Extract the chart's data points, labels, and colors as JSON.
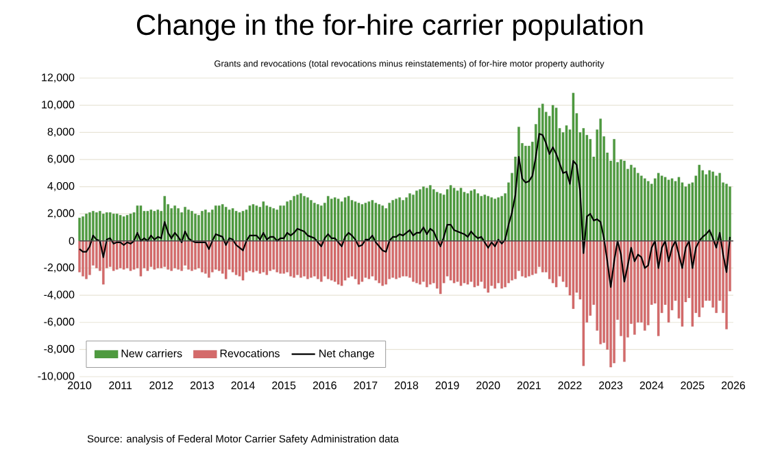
{
  "chart_data": {
    "type": "bar",
    "title": "Change in the for-hire carrier population",
    "subtitle": "Grants and revocations (total revocations minus reinstatements) of for-hire motor property authority",
    "annotations": [
      "Source: analysis of Federal Motor Carrier Safety Administration data"
    ],
    "x": [
      "2010-01",
      "2010-02",
      "2010-03",
      "2010-04",
      "2010-05",
      "2010-06",
      "2010-07",
      "2010-08",
      "2010-09",
      "2010-10",
      "2010-11",
      "2010-12",
      "2011-01",
      "2011-02",
      "2011-03",
      "2011-04",
      "2011-05",
      "2011-06",
      "2011-07",
      "2011-08",
      "2011-09",
      "2011-10",
      "2011-11",
      "2011-12",
      "2012-01",
      "2012-02",
      "2012-03",
      "2012-04",
      "2012-05",
      "2012-06",
      "2012-07",
      "2012-08",
      "2012-09",
      "2012-10",
      "2012-11",
      "2012-12",
      "2013-01",
      "2013-02",
      "2013-03",
      "2013-04",
      "2013-05",
      "2013-06",
      "2013-07",
      "2013-08",
      "2013-09",
      "2013-10",
      "2013-11",
      "2013-12",
      "2014-01",
      "2014-02",
      "2014-03",
      "2014-04",
      "2014-05",
      "2014-06",
      "2014-07",
      "2014-08",
      "2014-09",
      "2014-10",
      "2014-11",
      "2014-12",
      "2015-01",
      "2015-02",
      "2015-03",
      "2015-04",
      "2015-05",
      "2015-06",
      "2015-07",
      "2015-08",
      "2015-09",
      "2015-10",
      "2015-11",
      "2015-12",
      "2016-01",
      "2016-02",
      "2016-03",
      "2016-04",
      "2016-05",
      "2016-06",
      "2016-07",
      "2016-08",
      "2016-09",
      "2016-10",
      "2016-11",
      "2016-12",
      "2017-01",
      "2017-02",
      "2017-03",
      "2017-04",
      "2017-05",
      "2017-06",
      "2017-07",
      "2017-08",
      "2017-09",
      "2017-10",
      "2017-11",
      "2017-12",
      "2018-01",
      "2018-02",
      "2018-03",
      "2018-04",
      "2018-05",
      "2018-06",
      "2018-07",
      "2018-08",
      "2018-09",
      "2018-10",
      "2018-11",
      "2018-12",
      "2019-01",
      "2019-02",
      "2019-03",
      "2019-04",
      "2019-05",
      "2019-06",
      "2019-07",
      "2019-08",
      "2019-09",
      "2019-10",
      "2019-11",
      "2019-12",
      "2020-01",
      "2020-02",
      "2020-03",
      "2020-04",
      "2020-05",
      "2020-06",
      "2020-07",
      "2020-08",
      "2020-09",
      "2020-10",
      "2020-11",
      "2020-12",
      "2021-01",
      "2021-02",
      "2021-03",
      "2021-04",
      "2021-05",
      "2021-06",
      "2021-07",
      "2021-08",
      "2021-09",
      "2021-10",
      "2021-11",
      "2021-12",
      "2022-01",
      "2022-02",
      "2022-03",
      "2022-04",
      "2022-05",
      "2022-06",
      "2022-07",
      "2022-08",
      "2022-09",
      "2022-10",
      "2022-11",
      "2022-12",
      "2023-01",
      "2023-02",
      "2023-03",
      "2023-04",
      "2023-05",
      "2023-06",
      "2023-07",
      "2023-08",
      "2023-09",
      "2023-10",
      "2023-11",
      "2023-12",
      "2024-01",
      "2024-02",
      "2024-03",
      "2024-04",
      "2024-05",
      "2024-06",
      "2024-07",
      "2024-08",
      "2024-09",
      "2024-10",
      "2024-11",
      "2024-12",
      "2025-01",
      "2025-02",
      "2025-03",
      "2025-04",
      "2025-05",
      "2025-06",
      "2025-07",
      "2025-08",
      "2025-09",
      "2025-10",
      "2025-11",
      "2025-12"
    ],
    "series": [
      {
        "name": "New carriers",
        "color": "#4e9a3f",
        "values": [
          1700,
          1800,
          2000,
          2100,
          2200,
          2100,
          2200,
          2000,
          2100,
          2100,
          2000,
          2000,
          1900,
          1800,
          1900,
          2000,
          2100,
          2600,
          2600,
          2200,
          2200,
          2300,
          2200,
          2300,
          2200,
          3300,
          2700,
          2400,
          2600,
          2400,
          2100,
          2500,
          2300,
          2200,
          2000,
          1900,
          2200,
          2300,
          2100,
          2300,
          2600,
          2600,
          2700,
          2500,
          2300,
          2400,
          2200,
          2100,
          2200,
          2300,
          2600,
          2700,
          2600,
          2500,
          2900,
          2600,
          2500,
          2400,
          2300,
          2600,
          2600,
          2900,
          3000,
          3300,
          3400,
          3500,
          3300,
          3200,
          3000,
          2800,
          2700,
          2600,
          2800,
          3300,
          3100,
          3200,
          3100,
          2900,
          3200,
          3300,
          3000,
          2900,
          2800,
          2700,
          2800,
          2900,
          3000,
          2800,
          2700,
          2600,
          2400,
          2800,
          3000,
          3100,
          3200,
          3000,
          3200,
          3500,
          3400,
          3700,
          3800,
          4000,
          3900,
          4100,
          3800,
          3600,
          3500,
          3400,
          3800,
          4100,
          3900,
          3700,
          3900,
          3600,
          3500,
          3700,
          3800,
          3500,
          3300,
          3400,
          3300,
          3200,
          3100,
          3200,
          3300,
          3500,
          4300,
          5000,
          6200,
          8400,
          7200,
          7000,
          7000,
          7300,
          8600,
          9800,
          10100,
          9500,
          9200,
          10000,
          9800,
          8300,
          8000,
          8500,
          8200,
          10900,
          9400,
          8000,
          8300,
          7800,
          7500,
          6200,
          8200,
          9000,
          7700,
          6500,
          5900,
          7500,
          5800,
          6000,
          5900,
          5300,
          5600,
          5400,
          5000,
          4800,
          4600,
          4400,
          4200,
          4600,
          5000,
          4800,
          4700,
          4500,
          4600,
          4400,
          4700,
          4300,
          4000,
          4200,
          4300,
          4800,
          5600,
          5200,
          4900,
          5200,
          5100,
          4800,
          5000,
          4300,
          4200,
          4000
        ]
      },
      {
        "name": "Revocations",
        "color": "#d46a6a",
        "values": [
          -2300,
          -2600,
          -2800,
          -2500,
          -1800,
          -2000,
          -2200,
          -3200,
          -2000,
          -1900,
          -2200,
          -2100,
          -2000,
          -2100,
          -2000,
          -2200,
          -2100,
          -2000,
          -2600,
          -2000,
          -2200,
          -1900,
          -2100,
          -2000,
          -2000,
          -1900,
          -2100,
          -2200,
          -2000,
          -2100,
          -2200,
          -1800,
          -2100,
          -2200,
          -2100,
          -2000,
          -2300,
          -2400,
          -2700,
          -2300,
          -2100,
          -2200,
          -2400,
          -2800,
          -2100,
          -2300,
          -2500,
          -2600,
          -2900,
          -2300,
          -2200,
          -2300,
          -2200,
          -2400,
          -2300,
          -2500,
          -2200,
          -2100,
          -2300,
          -2400,
          -2400,
          -2300,
          -2600,
          -2700,
          -2500,
          -2700,
          -2600,
          -2800,
          -2700,
          -2600,
          -2800,
          -3000,
          -2600,
          -2800,
          -2900,
          -3000,
          -3200,
          -3300,
          -2900,
          -2700,
          -2600,
          -2800,
          -3200,
          -3000,
          -2700,
          -2800,
          -2600,
          -2900,
          -3100,
          -3300,
          -3200,
          -2800,
          -2700,
          -2800,
          -2700,
          -2600,
          -2600,
          -2700,
          -3000,
          -3100,
          -3200,
          -3000,
          -3400,
          -3200,
          -3100,
          -3500,
          -3900,
          -3100,
          -2600,
          -2900,
          -3100,
          -3000,
          -3300,
          -3100,
          -3200,
          -3000,
          -3400,
          -3300,
          -3000,
          -3500,
          -3800,
          -3300,
          -3500,
          -3100,
          -3500,
          -3400,
          -3100,
          -2900,
          -2800,
          -2200,
          -2600,
          -2700,
          -2600,
          -2500,
          -2400,
          -1900,
          -2300,
          -2300,
          -2800,
          -3100,
          -3400,
          -2600,
          -3000,
          -3400,
          -4000,
          -5000,
          -3800,
          -4300,
          -9200,
          -6000,
          -5500,
          -4700,
          -6600,
          -7600,
          -7500,
          -8000,
          -9300,
          -9000,
          -5800,
          -7000,
          -8900,
          -7100,
          -6100,
          -6900,
          -6000,
          -6000,
          -6600,
          -6200,
          -4700,
          -4600,
          -7000,
          -5300,
          -4700,
          -6000,
          -5100,
          -4400,
          -5700,
          -6300,
          -4500,
          -4200,
          -6300,
          -5300,
          -5600,
          -4900,
          -4400,
          -4400,
          -4900,
          -5300,
          -4400,
          -5300,
          -6500,
          -3700
        ]
      },
      {
        "name": "Net change",
        "type": "line",
        "color": "#000000",
        "values": [
          -600,
          -800,
          -800,
          -400,
          400,
          100,
          0,
          -1200,
          100,
          200,
          -200,
          -100,
          -100,
          -300,
          -100,
          -200,
          0,
          600,
          0,
          200,
          0,
          400,
          100,
          300,
          200,
          1400,
          600,
          200,
          600,
          300,
          -100,
          700,
          200,
          0,
          -100,
          -100,
          -100,
          -100,
          -600,
          0,
          500,
          400,
          300,
          -300,
          200,
          100,
          -300,
          -500,
          -700,
          0,
          400,
          400,
          400,
          100,
          600,
          100,
          300,
          300,
          0,
          200,
          200,
          600,
          400,
          600,
          900,
          800,
          700,
          400,
          300,
          200,
          -100,
          -400,
          200,
          500,
          200,
          200,
          -100,
          -400,
          300,
          600,
          400,
          100,
          -400,
          -300,
          100,
          100,
          400,
          -100,
          -400,
          -700,
          -800,
          0,
          300,
          300,
          500,
          400,
          600,
          800,
          400,
          600,
          600,
          1000,
          500,
          900,
          700,
          100,
          -400,
          300,
          1200,
          1200,
          800,
          700,
          600,
          500,
          300,
          700,
          400,
          200,
          300,
          -100,
          -500,
          -100,
          -400,
          100,
          -200,
          100,
          1200,
          2100,
          3400,
          6200,
          4600,
          4300,
          4400,
          4800,
          6200,
          7900,
          7800,
          7200,
          6400,
          6900,
          6400,
          5700,
          5000,
          5100,
          4200,
          5900,
          5600,
          3700,
          -900,
          1800,
          2000,
          1500,
          1600,
          1400,
          200,
          -1500,
          -3400,
          -1500,
          0,
          -1000,
          -3000,
          -1800,
          -500,
          -1500,
          -1000,
          -1200,
          -2000,
          -1800,
          -500,
          0,
          -2000,
          -500,
          0,
          -1500,
          -500,
          0,
          -1000,
          -2000,
          -500,
          0,
          -2000,
          -500,
          0,
          300,
          500,
          800,
          200,
          -500,
          600,
          -1000,
          -2300,
          300
        ]
      }
    ],
    "xlim": [
      "2010-01",
      "2026-01"
    ],
    "xticks": [
      "2010",
      "2011",
      "2012",
      "2013",
      "2014",
      "2015",
      "2016",
      "2017",
      "2018",
      "2019",
      "2020",
      "2021",
      "2022",
      "2023",
      "2024",
      "2025",
      "2026"
    ],
    "ylim": [
      -10000,
      12000
    ],
    "yticks": [
      {
        "value": -10000,
        "label": "-10,000"
      },
      {
        "value": -8000,
        "label": "-8,000"
      },
      {
        "value": -6000,
        "label": "-6,000"
      },
      {
        "value": -4000,
        "label": "-4,000"
      },
      {
        "value": -2000,
        "label": "-2,000"
      },
      0,
      {
        "value": 2000,
        "label": "2,000"
      },
      {
        "value": 4000,
        "label": "4,000"
      },
      {
        "value": 6000,
        "label": "6,000"
      },
      {
        "value": 8000,
        "label": "8,000"
      },
      {
        "value": 10000,
        "label": "10,000"
      },
      {
        "value": 12000,
        "label": "12,000"
      }
    ],
    "grid": "y",
    "legend": "bottom left"
  }
}
